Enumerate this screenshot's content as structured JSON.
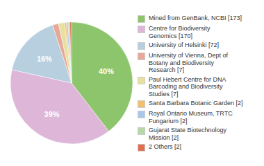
{
  "chart_data": {
    "type": "pie",
    "categories": [
      "Mined from GenBank, NCBI [173]",
      "Centre for Biodiversity\nGenomics [170]",
      "University of Helsinki [72]",
      "University of Vienna, Dept of\nBotany and Biodiversity\nResearch [7]",
      "Paul Hebert Centre for DNA\nBarcoding and Biodiversity\nStudies [7]",
      "Santa Barbara Botanic Garden [2]",
      "Royal Ontario Museum, TRTC\nFungarium [2]",
      "Gujarat State Biotechnology\nMission [2]",
      "2 Others [2]"
    ],
    "values": [
      173,
      170,
      72,
      7,
      7,
      2,
      2,
      2,
      2
    ],
    "value_labels": [
      "40%",
      "39%",
      "16%",
      null,
      null,
      null,
      null,
      null,
      null
    ],
    "data_labels": true,
    "colors": [
      "#8dc56c",
      "#ddb6d8",
      "#b8cfe0",
      "#e8a898",
      "#e8e0a0",
      "#f0c070",
      "#a8c8e8",
      "#b8d8a8",
      "#e07050"
    ],
    "legend": "right"
  }
}
